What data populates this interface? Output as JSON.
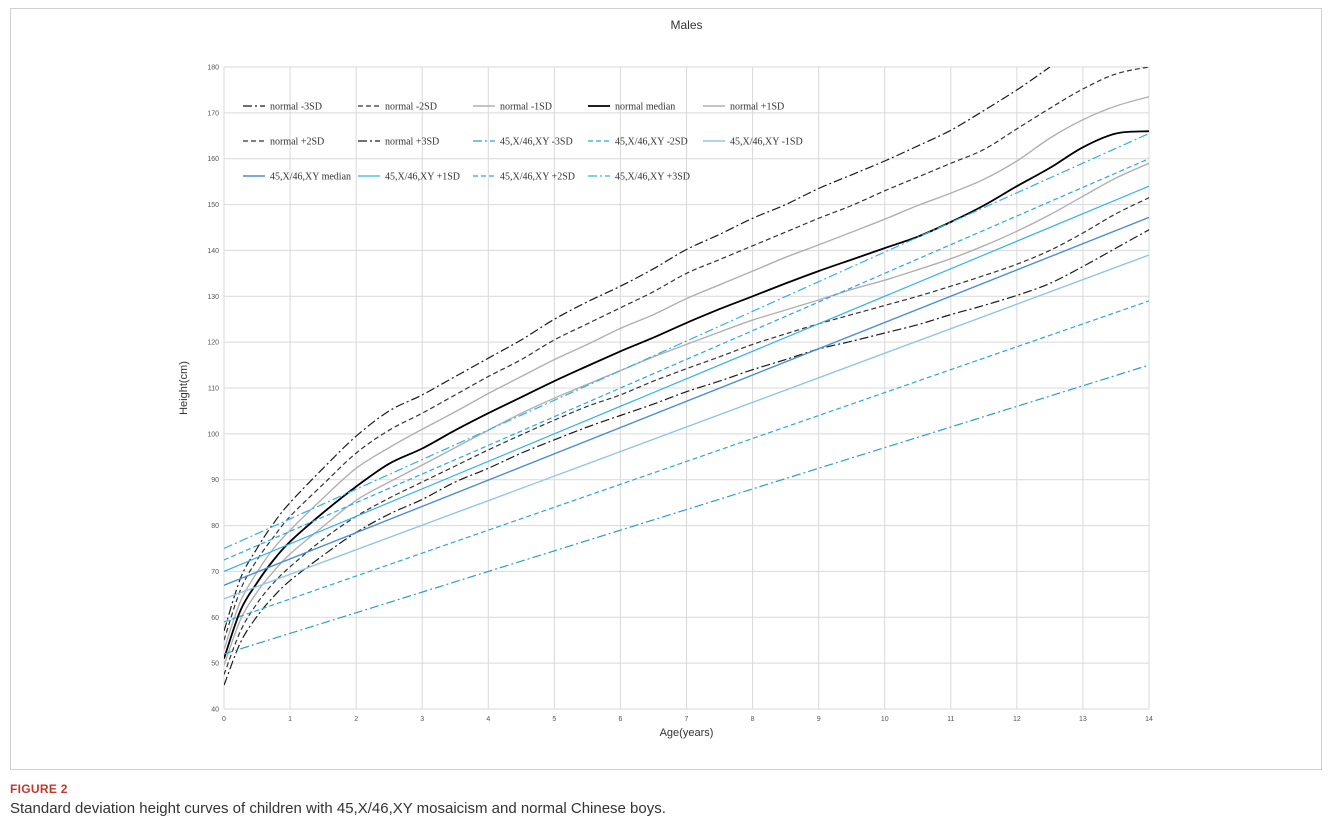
{
  "figure": {
    "label": "FIGURE 2",
    "caption": "Standard deviation height curves of children with 45,X/46,XY mosaicism and normal Chinese boys."
  },
  "chart_data": {
    "type": "line",
    "title": "Males",
    "xlabel": "Age(years)",
    "ylabel": "Height(cm)",
    "xlim": [
      0,
      14
    ],
    "ylim": [
      40,
      180
    ],
    "x_ticks": [
      0,
      1,
      2,
      3,
      4,
      5,
      6,
      7,
      8,
      9,
      10,
      11,
      12,
      13,
      14
    ],
    "y_ticks": [
      40,
      50,
      60,
      70,
      80,
      90,
      100,
      110,
      120,
      130,
      140,
      150,
      160,
      170,
      180
    ],
    "grid": "vertical and horizontal",
    "legend_position": "top-left inside",
    "series": [
      {
        "name": "normal -3SD",
        "color": "#1a1a1a",
        "dash": "dashdot",
        "width": 1.2,
        "x": [
          0,
          0.25,
          0.5,
          0.75,
          1,
          1.5,
          2,
          2.5,
          3,
          3.5,
          4,
          4.5,
          5,
          5.5,
          6,
          6.5,
          7,
          7.5,
          8,
          8.5,
          9,
          9.5,
          10,
          10.5,
          11,
          11.5,
          12,
          12.5,
          13,
          13.5,
          14
        ],
        "y": [
          45.2,
          54.5,
          60.2,
          64.5,
          68.0,
          73.5,
          78.5,
          82.5,
          85.7,
          89.5,
          92.5,
          95.8,
          98.7,
          101.5,
          104.0,
          106.5,
          109.2,
          111.5,
          114.0,
          116.2,
          118.5,
          120.2,
          122.0,
          123.8,
          126.0,
          128.0,
          130.2,
          132.8,
          136.5,
          140.5,
          144.5
        ]
      },
      {
        "name": "normal -2SD",
        "color": "#333333",
        "dash": "dash",
        "width": 1.2,
        "x": [
          0,
          0.25,
          0.5,
          0.75,
          1,
          1.5,
          2,
          2.5,
          3,
          3.5,
          4,
          4.5,
          5,
          5.5,
          6,
          6.5,
          7,
          7.5,
          8,
          8.5,
          9,
          9.5,
          10,
          10.5,
          11,
          11.5,
          12,
          12.5,
          13,
          13.5,
          14
        ],
        "y": [
          47.5,
          57.0,
          63.0,
          67.5,
          71.0,
          77.0,
          82.0,
          86.0,
          89.5,
          93.0,
          96.5,
          99.8,
          103.0,
          106.0,
          108.5,
          111.5,
          114.2,
          116.8,
          119.5,
          121.8,
          124.0,
          126.0,
          128.0,
          130.0,
          132.2,
          134.5,
          137.0,
          140.0,
          143.8,
          148.0,
          151.5
        ]
      },
      {
        "name": "normal -1SD",
        "color": "#b0b0b0",
        "dash": "solid",
        "width": 1.4,
        "x": [
          0,
          0.25,
          0.5,
          0.75,
          1,
          1.5,
          2,
          2.5,
          3,
          3.5,
          4,
          4.5,
          5,
          5.5,
          6,
          6.5,
          7,
          7.5,
          8,
          8.5,
          9,
          9.5,
          10,
          10.5,
          11,
          11.5,
          12,
          12.5,
          13,
          13.5,
          14
        ],
        "y": [
          49.5,
          59.5,
          65.5,
          70.0,
          73.8,
          79.8,
          85.5,
          89.5,
          93.2,
          97.0,
          100.8,
          104.5,
          107.8,
          110.8,
          113.8,
          116.8,
          119.5,
          122.2,
          124.8,
          127.0,
          129.2,
          131.5,
          133.5,
          135.8,
          138.2,
          141.0,
          144.2,
          147.8,
          151.8,
          155.8,
          159.0
        ]
      },
      {
        "name": "normal median",
        "color": "#000000",
        "dash": "solid",
        "width": 1.8,
        "x": [
          0,
          0.25,
          0.5,
          0.75,
          1,
          1.5,
          2,
          2.5,
          3,
          3.5,
          4,
          4.5,
          5,
          5.5,
          6,
          6.5,
          7,
          7.5,
          8,
          8.5,
          9,
          9.5,
          10,
          10.5,
          11,
          11.5,
          12,
          12.5,
          13,
          13.5,
          14
        ],
        "y": [
          51.0,
          61.5,
          67.5,
          72.5,
          76.5,
          82.8,
          88.5,
          93.5,
          96.8,
          100.8,
          104.5,
          108.0,
          111.5,
          114.8,
          118.0,
          121.0,
          124.2,
          127.2,
          130.0,
          132.8,
          135.5,
          138.0,
          140.5,
          143.0,
          146.2,
          149.8,
          154.0,
          158.0,
          162.5,
          165.5,
          166.0
        ]
      },
      {
        "name": "normal +1SD",
        "color": "#b0b0b0",
        "dash": "solid",
        "width": 1.4,
        "x": [
          0,
          0.25,
          0.5,
          0.75,
          1,
          1.5,
          2,
          2.5,
          3,
          3.5,
          4,
          4.5,
          5,
          5.5,
          6,
          6.5,
          7,
          7.5,
          8,
          8.5,
          9,
          9.5,
          10,
          10.5,
          11,
          11.5,
          12,
          12.5,
          13,
          13.5,
          14
        ],
        "y": [
          53.0,
          63.5,
          69.8,
          75.0,
          79.0,
          86.0,
          92.5,
          97.0,
          101.0,
          104.8,
          108.8,
          112.5,
          116.2,
          119.5,
          123.0,
          126.0,
          129.5,
          132.5,
          135.5,
          138.5,
          141.2,
          144.0,
          146.8,
          149.8,
          152.5,
          155.5,
          159.5,
          164.5,
          168.5,
          171.5,
          173.5
        ]
      },
      {
        "name": "normal +2SD",
        "color": "#333333",
        "dash": "dash",
        "width": 1.2,
        "x": [
          0,
          0.25,
          0.5,
          0.75,
          1,
          1.5,
          2,
          2.5,
          3,
          3.5,
          4,
          4.5,
          5,
          5.5,
          6,
          6.5,
          7,
          7.5,
          8,
          8.5,
          9,
          9.5,
          10,
          10.5,
          11,
          11.5,
          12,
          12.5,
          13,
          13.5,
          14
        ],
        "y": [
          55.0,
          66.0,
          72.5,
          77.5,
          82.0,
          89.0,
          95.8,
          100.8,
          104.5,
          108.5,
          112.5,
          116.2,
          120.5,
          124.0,
          127.5,
          131.0,
          135.0,
          138.0,
          141.0,
          144.0,
          147.0,
          149.8,
          153.0,
          156.0,
          159.0,
          162.0,
          166.5,
          171.0,
          175.2,
          178.5,
          180.0
        ]
      },
      {
        "name": "normal +3SD",
        "color": "#1a1a1a",
        "dash": "dashdot",
        "width": 1.2,
        "x": [
          0,
          0.25,
          0.5,
          0.75,
          1,
          1.5,
          2,
          2.5,
          3,
          3.5,
          4,
          4.5,
          5,
          5.5,
          6,
          6.5,
          7,
          7.5,
          8,
          8.5,
          9,
          9.5,
          10,
          10.5,
          11,
          11.5,
          12,
          12.5
        ],
        "y": [
          57.0,
          68.5,
          75.0,
          80.5,
          85.0,
          92.5,
          99.5,
          105.0,
          108.5,
          112.5,
          116.5,
          120.5,
          125.0,
          128.8,
          132.2,
          136.0,
          140.2,
          143.5,
          147.0,
          150.0,
          153.5,
          156.5,
          159.5,
          162.8,
          166.2,
          170.5,
          175.0,
          180.0
        ]
      },
      {
        "name": "45,X/46,XY -3SD",
        "color": "#2a9fd0",
        "dash": "dashdot",
        "width": 1.2,
        "x": [
          0,
          14
        ],
        "y": [
          52.0,
          115.0
        ]
      },
      {
        "name": "45,X/46,XY -2SD",
        "color": "#2aa8e0",
        "dash": "dash",
        "width": 1.2,
        "x": [
          0,
          14
        ],
        "y": [
          59.0,
          129.0
        ]
      },
      {
        "name": "45,X/46,XY -1SD",
        "color": "#92c6e6",
        "dash": "solid",
        "width": 1.4,
        "x": [
          0,
          14
        ],
        "y": [
          64.0,
          139.0
        ]
      },
      {
        "name": "45,X/46,XY median",
        "color": "#4a8fd0",
        "dash": "solid",
        "width": 1.4,
        "x": [
          0,
          14
        ],
        "y": [
          67.0,
          147.2
        ]
      },
      {
        "name": "45,X/46,XY +1SD",
        "color": "#33b2e6",
        "dash": "solid",
        "width": 1.2,
        "x": [
          0,
          14
        ],
        "y": [
          70.0,
          154.0
        ]
      },
      {
        "name": "45,X/46,XY +2SD",
        "color": "#2aa8e0",
        "dash": "dash",
        "width": 1.2,
        "x": [
          0,
          14
        ],
        "y": [
          72.5,
          160.0
        ]
      },
      {
        "name": "45,X/46,XY +3SD",
        "color": "#33b2e6",
        "dash": "dashdot",
        "width": 1.2,
        "x": [
          0,
          14
        ],
        "y": [
          75.0,
          165.5
        ]
      }
    ]
  }
}
